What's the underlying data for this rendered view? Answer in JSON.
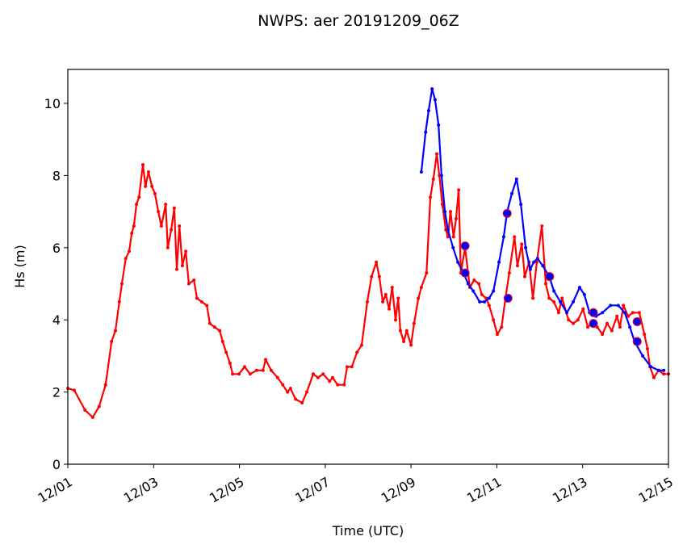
{
  "chart_data": {
    "type": "line",
    "title": "NWPS: aer 20191209_06Z",
    "xlabel": "Time (UTC)",
    "ylabel": "Hs (m)",
    "xlim": [
      1,
      15
    ],
    "xticks": [
      {
        "value": 1,
        "label": "12/01"
      },
      {
        "value": 3,
        "label": "12/03"
      },
      {
        "value": 5,
        "label": "12/05"
      },
      {
        "value": 7,
        "label": "12/07"
      },
      {
        "value": 9,
        "label": "12/09"
      },
      {
        "value": 11,
        "label": "12/11"
      },
      {
        "value": 13,
        "label": "12/13"
      },
      {
        "value": 15,
        "label": "12/15"
      }
    ],
    "ylim": [
      0,
      10.94
    ],
    "yticks": [
      0,
      2,
      4,
      6,
      8,
      10
    ],
    "series": [
      {
        "color": "#ff0000",
        "marker": "dot",
        "x": [
          1.0,
          1.15,
          1.4,
          1.58,
          1.73,
          1.88,
          2.02,
          2.11,
          2.2,
          2.26,
          2.35,
          2.43,
          2.49,
          2.54,
          2.6,
          2.66,
          2.75,
          2.81,
          2.88,
          2.96,
          3.03,
          3.11,
          3.18,
          3.28,
          3.33,
          3.41,
          3.48,
          3.54,
          3.6,
          3.67,
          3.75,
          3.82,
          3.94,
          4.01,
          4.12,
          4.24,
          4.31,
          4.42,
          4.54,
          4.61,
          4.69,
          4.78,
          4.84,
          4.99,
          5.12,
          5.25,
          5.4,
          5.55,
          5.61,
          5.74,
          5.89,
          6.01,
          6.12,
          6.19,
          6.31,
          6.46,
          6.57,
          6.72,
          6.83,
          6.95,
          7.1,
          7.17,
          7.29,
          7.44,
          7.51,
          7.62,
          7.74,
          7.85,
          7.98,
          8.08,
          8.19,
          8.26,
          8.34,
          8.41,
          8.49,
          8.56,
          8.64,
          8.7,
          8.75,
          8.83,
          8.9,
          9.0,
          9.07,
          9.17,
          9.24,
          9.36,
          9.45,
          9.52,
          9.6,
          9.66,
          9.73,
          9.81,
          9.86,
          9.92,
          9.99,
          10.05,
          10.11,
          10.16,
          10.26,
          10.37,
          10.47,
          10.58,
          10.65,
          10.75,
          10.82,
          10.92,
          11.01,
          11.11,
          11.2,
          11.29,
          11.41,
          11.48,
          11.58,
          11.65,
          11.75,
          11.84,
          11.93,
          12.05,
          12.14,
          12.22,
          12.33,
          12.44,
          12.52,
          12.67,
          12.78,
          12.89,
          13.01,
          13.12,
          13.21,
          13.34,
          13.46,
          13.57,
          13.68,
          13.8,
          13.87,
          13.95,
          14.06,
          14.17,
          14.32,
          14.44,
          14.51,
          14.57,
          14.66,
          14.77,
          14.89,
          15.0
        ],
        "values": [
          2.1,
          2.05,
          1.5,
          1.3,
          1.6,
          2.2,
          3.4,
          3.7,
          4.5,
          5.0,
          5.7,
          5.9,
          6.4,
          6.6,
          7.2,
          7.4,
          8.3,
          7.7,
          8.1,
          7.7,
          7.5,
          7.0,
          6.6,
          7.2,
          6.0,
          6.5,
          7.1,
          5.4,
          6.6,
          5.5,
          5.9,
          5.0,
          5.1,
          4.6,
          4.5,
          4.4,
          3.9,
          3.8,
          3.7,
          3.4,
          3.1,
          2.8,
          2.5,
          2.5,
          2.7,
          2.5,
          2.6,
          2.6,
          2.9,
          2.6,
          2.4,
          2.2,
          2.0,
          2.1,
          1.8,
          1.7,
          2.0,
          2.5,
          2.4,
          2.5,
          2.3,
          2.4,
          2.2,
          2.2,
          2.7,
          2.7,
          3.1,
          3.3,
          4.5,
          5.2,
          5.6,
          5.2,
          4.5,
          4.7,
          4.3,
          4.9,
          4.0,
          4.6,
          3.7,
          3.4,
          3.7,
          3.3,
          3.9,
          4.6,
          4.9,
          5.3,
          7.4,
          7.9,
          8.6,
          8.0,
          7.2,
          6.5,
          6.3,
          7.0,
          6.3,
          6.8,
          7.6,
          5.3,
          6.0,
          4.9,
          5.1,
          5.0,
          4.7,
          4.6,
          4.4,
          4.0,
          3.6,
          3.8,
          4.6,
          5.3,
          6.3,
          5.5,
          6.1,
          5.2,
          5.6,
          4.6,
          5.6,
          6.6,
          5.0,
          4.6,
          4.5,
          4.2,
          4.6,
          4.0,
          3.9,
          4.0,
          4.3,
          3.8,
          3.9,
          3.8,
          3.6,
          3.9,
          3.7,
          4.1,
          3.8,
          4.4,
          4.1,
          4.2,
          4.2,
          3.6,
          3.2,
          2.7,
          2.4,
          2.6,
          2.5,
          2.5
        ]
      },
      {
        "color": "#0000ff",
        "marker": "dot",
        "x": [
          9.24,
          9.34,
          9.41,
          9.49,
          9.56,
          9.64,
          9.71,
          9.79,
          9.86,
          9.98,
          10.09,
          10.22,
          10.33,
          10.45,
          10.6,
          10.71,
          10.82,
          10.92,
          11.05,
          11.16,
          11.24,
          11.35,
          11.46,
          11.56,
          11.67,
          11.78,
          11.86,
          11.95,
          12.07,
          12.22,
          12.33,
          12.48,
          12.63,
          12.78,
          12.93,
          13.04,
          13.16,
          13.31,
          13.46,
          13.65,
          13.83,
          13.98,
          14.1,
          14.21,
          14.4,
          14.59,
          14.77,
          14.89
        ],
        "values": [
          8.1,
          9.2,
          9.8,
          10.4,
          10.1,
          9.4,
          8.0,
          7.0,
          6.5,
          6.0,
          5.6,
          5.3,
          5.0,
          4.8,
          4.5,
          4.5,
          4.6,
          4.8,
          5.6,
          6.3,
          7.0,
          7.5,
          7.9,
          7.2,
          6.0,
          5.4,
          5.6,
          5.7,
          5.5,
          5.2,
          4.8,
          4.5,
          4.2,
          4.5,
          4.9,
          4.7,
          4.2,
          4.1,
          4.2,
          4.4,
          4.4,
          4.2,
          3.8,
          3.4,
          3.0,
          2.7,
          2.6,
          2.6
        ]
      },
      {
        "color": "#0000ff",
        "edgecolor": "#ff0000",
        "marker": "circle",
        "line": false,
        "x": [
          10.26,
          10.26,
          11.24,
          11.26,
          12.23,
          13.25,
          13.25,
          14.27,
          14.27
        ],
        "values": [
          6.05,
          5.3,
          6.95,
          4.6,
          5.2,
          4.2,
          3.9,
          3.95,
          3.4
        ]
      }
    ]
  }
}
